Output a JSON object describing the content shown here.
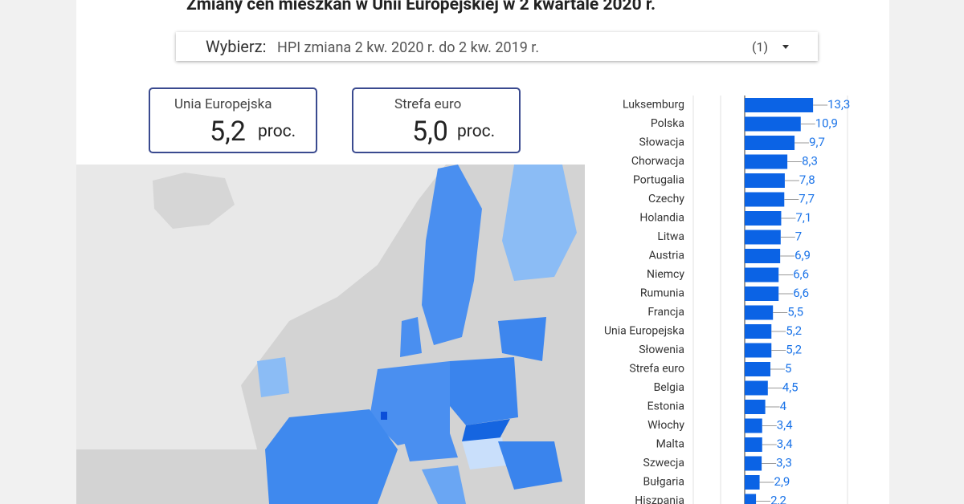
{
  "header": {
    "title": "Zmiany cen mieszkań w Unii Europejskiej w 2 kwartale 2020 r."
  },
  "filter": {
    "label": "Wybierz:",
    "value": "HPI zmiana 2 kw. 2020 r. do 2 kw. 2019 r.",
    "count": "(1)"
  },
  "kpis": [
    {
      "label": "Unia Europejska",
      "value": "5,2",
      "unit": "proc."
    },
    {
      "label": "Strefa euro",
      "value": "5,0",
      "unit": "proc."
    }
  ],
  "chart_data": {
    "type": "bar",
    "orientation": "horizontal",
    "color": "#0b63e5",
    "label_color": "#1a73e8",
    "categories": [
      "Luksemburg",
      "Polska",
      "Słowacja",
      "Chorwacja",
      "Portugalia",
      "Czechy",
      "Holandia",
      "Litwa",
      "Austria",
      "Niemcy",
      "Rumunia",
      "Francja",
      "Unia Europejska",
      "Słowenia",
      "Strefa euro",
      "Belgia",
      "Estonia",
      "Włochy",
      "Malta",
      "Szwecja",
      "Bułgaria",
      "Hiszpania"
    ],
    "values": [
      13.3,
      10.9,
      9.7,
      8.3,
      7.8,
      7.7,
      7.1,
      7,
      6.9,
      6.6,
      6.6,
      5.5,
      5.2,
      5.2,
      5,
      4.5,
      4,
      3.4,
      3.4,
      3.3,
      2.9,
      2.2
    ],
    "value_labels": [
      "13,3",
      "10,9",
      "9,7",
      "8,3",
      "7,8",
      "7,7",
      "7,1",
      "7",
      "6,9",
      "6,6",
      "6,6",
      "5,5",
      "5,2",
      "5,2",
      "5",
      "4,5",
      "4",
      "3,4",
      "3,4",
      "3,3",
      "2,9",
      "2,2"
    ],
    "xlim": [
      -10,
      20
    ]
  }
}
